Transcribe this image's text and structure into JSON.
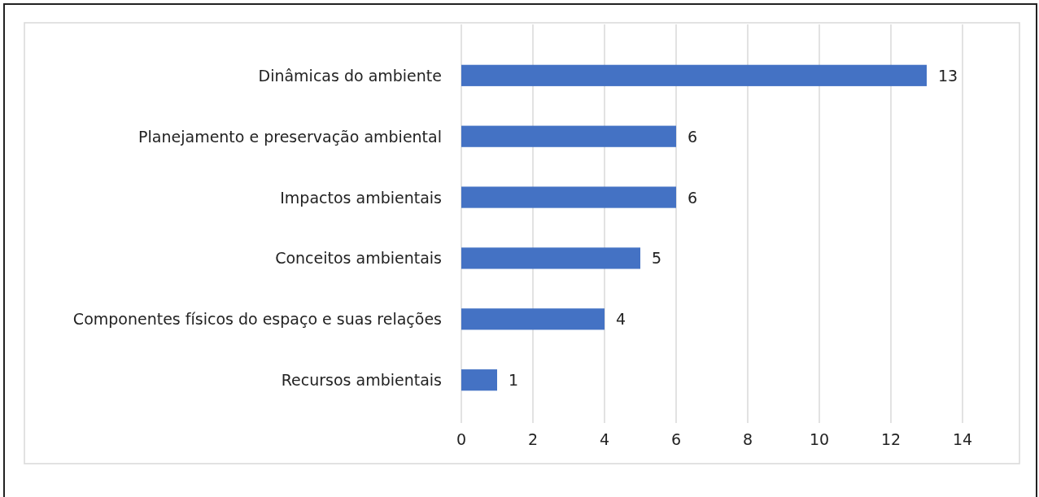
{
  "chart_data": {
    "type": "bar",
    "orientation": "horizontal",
    "categories": [
      "Dinâmicas do ambiente",
      "Planejamento e preservação ambiental",
      "Impactos ambientais",
      "Conceitos ambientais",
      "Componentes físicos do espaço e suas relações",
      "Recursos ambientais"
    ],
    "values": [
      13,
      6,
      6,
      5,
      4,
      1
    ],
    "color": "#4472c4",
    "xlim": [
      0,
      14
    ],
    "xticks": [
      0,
      2,
      4,
      6,
      8,
      10,
      12,
      14
    ],
    "grid": "x",
    "data_labels": true
  }
}
